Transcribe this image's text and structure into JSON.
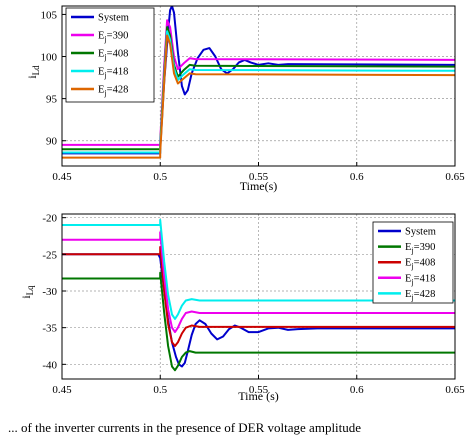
{
  "chart_data": [
    {
      "type": "line",
      "title": "",
      "xlabel": "Time(s)",
      "ylabel": "i_Ld",
      "xlim": [
        0.45,
        0.65
      ],
      "ylim": [
        87,
        106
      ],
      "xticks": [
        0.45,
        0.5,
        0.55,
        0.6,
        0.65
      ],
      "xtick_labels": [
        "0.45",
        "0.5",
        "0.55",
        "0.6",
        "0.65"
      ],
      "yticks": [
        90,
        95,
        100,
        105
      ],
      "ytick_labels": [
        "90",
        "95",
        "100",
        "105"
      ],
      "grid": true,
      "legend_position": "top-left",
      "series": [
        {
          "name": "System",
          "legend_main": "System",
          "legend_sub": "",
          "legend_tail": "",
          "color": "#0000cc",
          "points": [
            [
              0.45,
              88.5
            ],
            [
              0.5,
              88.5
            ],
            [
              0.5,
              89
            ],
            [
              0.502,
              97
            ],
            [
              0.504,
              103
            ],
            [
              0.505,
              105.5
            ],
            [
              0.506,
              106
            ],
            [
              0.507,
              105.2
            ],
            [
              0.509,
              100.5
            ],
            [
              0.511,
              96.5
            ],
            [
              0.5125,
              95.5
            ],
            [
              0.514,
              96
            ],
            [
              0.516,
              98
            ],
            [
              0.519,
              99.8
            ],
            [
              0.522,
              100.8
            ],
            [
              0.525,
              101
            ],
            [
              0.528,
              100
            ],
            [
              0.531,
              98.5
            ],
            [
              0.534,
              98
            ],
            [
              0.537,
              98.5
            ],
            [
              0.54,
              99.3
            ],
            [
              0.543,
              99.6
            ],
            [
              0.546,
              99.3
            ],
            [
              0.55,
              99
            ],
            [
              0.555,
              99.2
            ],
            [
              0.56,
              99
            ],
            [
              0.565,
              99.1
            ],
            [
              0.65,
              99
            ]
          ]
        },
        {
          "name": "E_j=390",
          "legend_main": "E",
          "legend_sub": "j",
          "legend_tail": "=390",
          "color": "#ee00ee",
          "points": [
            [
              0.45,
              89.5
            ],
            [
              0.5,
              89.5
            ],
            [
              0.5,
              90
            ],
            [
              0.502,
              99
            ],
            [
              0.5035,
              104.3
            ],
            [
              0.505,
              103.5
            ],
            [
              0.507,
              100
            ],
            [
              0.509,
              98.5
            ],
            [
              0.512,
              99.2
            ],
            [
              0.515,
              99.8
            ],
            [
              0.518,
              99.7
            ],
            [
              0.65,
              99.6
            ]
          ]
        },
        {
          "name": "E_j=408",
          "legend_main": "E",
          "legend_sub": "j",
          "legend_tail": "=408",
          "color": "#007700",
          "points": [
            [
              0.45,
              89
            ],
            [
              0.5,
              89
            ],
            [
              0.5,
              89.5
            ],
            [
              0.502,
              98
            ],
            [
              0.5035,
              103.5
            ],
            [
              0.505,
              102.5
            ],
            [
              0.507,
              99
            ],
            [
              0.509,
              97.6
            ],
            [
              0.512,
              98.4
            ],
            [
              0.515,
              99
            ],
            [
              0.518,
              98.9
            ],
            [
              0.65,
              98.8
            ]
          ]
        },
        {
          "name": "E_j=418",
          "legend_main": "E",
          "legend_sub": "j",
          "legend_tail": "=418",
          "color": "#00eeee",
          "points": [
            [
              0.45,
              88.6
            ],
            [
              0.5,
              88.6
            ],
            [
              0.5,
              89.2
            ],
            [
              0.502,
              97.5
            ],
            [
              0.5035,
              103
            ],
            [
              0.505,
              102
            ],
            [
              0.507,
              98.6
            ],
            [
              0.509,
              97.2
            ],
            [
              0.512,
              97.9
            ],
            [
              0.515,
              98.5
            ],
            [
              0.518,
              98.4
            ],
            [
              0.65,
              98.3
            ]
          ]
        },
        {
          "name": "E_j=428",
          "legend_main": "E",
          "legend_sub": "j",
          "legend_tail": "=428",
          "color": "#dd6600",
          "points": [
            [
              0.45,
              88
            ],
            [
              0.5,
              88
            ],
            [
              0.5,
              88.6
            ],
            [
              0.502,
              97
            ],
            [
              0.5035,
              102.5
            ],
            [
              0.505,
              101.5
            ],
            [
              0.507,
              98
            ],
            [
              0.509,
              96.8
            ],
            [
              0.512,
              97.4
            ],
            [
              0.515,
              98
            ],
            [
              0.518,
              97.9
            ],
            [
              0.65,
              97.8
            ]
          ]
        }
      ]
    },
    {
      "type": "line",
      "title": "",
      "xlabel": "Time (s)",
      "ylabel": "i_Lq",
      "xlim": [
        0.45,
        0.65
      ],
      "ylim": [
        -42,
        -19.5
      ],
      "xticks": [
        0.45,
        0.5,
        0.55,
        0.6,
        0.65
      ],
      "xtick_labels": [
        "0.45",
        "0.5",
        "0.55",
        "0.6",
        "0.65"
      ],
      "yticks": [
        -40,
        -35,
        -30,
        -25,
        -20
      ],
      "ytick_labels": [
        "-40",
        "-35",
        "-30",
        "-25",
        "-20"
      ],
      "grid": true,
      "legend_position": "top-right",
      "series": [
        {
          "name": "System",
          "legend_main": "System",
          "legend_sub": "",
          "legend_tail": "",
          "color": "#0000cc",
          "points": [
            [
              0.45,
              -25
            ],
            [
              0.499,
              -25
            ],
            [
              0.5,
              -25.5
            ],
            [
              0.502,
              -30
            ],
            [
              0.504,
              -34
            ],
            [
              0.506,
              -37
            ],
            [
              0.508,
              -39
            ],
            [
              0.5095,
              -40
            ],
            [
              0.511,
              -40.3
            ],
            [
              0.5125,
              -39.8
            ],
            [
              0.514,
              -38.2
            ],
            [
              0.516,
              -36
            ],
            [
              0.518,
              -34.5
            ],
            [
              0.52,
              -34
            ],
            [
              0.523,
              -34.5
            ],
            [
              0.526,
              -35.8
            ],
            [
              0.529,
              -36.6
            ],
            [
              0.532,
              -36.2
            ],
            [
              0.535,
              -35.2
            ],
            [
              0.538,
              -34.7
            ],
            [
              0.541,
              -35
            ],
            [
              0.545,
              -35.6
            ],
            [
              0.55,
              -35.6
            ],
            [
              0.555,
              -35.1
            ],
            [
              0.56,
              -35
            ],
            [
              0.565,
              -35.3
            ],
            [
              0.57,
              -35.2
            ],
            [
              0.58,
              -35.1
            ],
            [
              0.65,
              -35.1
            ]
          ]
        },
        {
          "name": "E_j=390",
          "legend_main": "E",
          "legend_sub": "j",
          "legend_tail": "=390",
          "color": "#007700",
          "points": [
            [
              0.45,
              -28.3
            ],
            [
              0.5,
              -28.3
            ],
            [
              0.5,
              -27.5
            ],
            [
              0.502,
              -33
            ],
            [
              0.504,
              -37.5
            ],
            [
              0.506,
              -40.3
            ],
            [
              0.5075,
              -40.8
            ],
            [
              0.509,
              -40.2
            ],
            [
              0.511,
              -39
            ],
            [
              0.513,
              -38.4
            ],
            [
              0.515,
              -38.2
            ],
            [
              0.518,
              -38.4
            ],
            [
              0.65,
              -38.4
            ]
          ]
        },
        {
          "name": "E_j=408",
          "legend_main": "E",
          "legend_sub": "j",
          "legend_tail": "=408",
          "color": "#cc0000",
          "points": [
            [
              0.45,
              -25
            ],
            [
              0.5,
              -25
            ],
            [
              0.5,
              -24
            ],
            [
              0.502,
              -30
            ],
            [
              0.504,
              -34.5
            ],
            [
              0.506,
              -37
            ],
            [
              0.5075,
              -37.5
            ],
            [
              0.509,
              -37
            ],
            [
              0.511,
              -35.8
            ],
            [
              0.513,
              -35
            ],
            [
              0.516,
              -34.7
            ],
            [
              0.52,
              -34.9
            ],
            [
              0.65,
              -34.9
            ]
          ]
        },
        {
          "name": "E_j=418",
          "legend_main": "E",
          "legend_sub": "j",
          "legend_tail": "=418",
          "color": "#ee00ee",
          "points": [
            [
              0.45,
              -23
            ],
            [
              0.5,
              -23
            ],
            [
              0.5,
              -22
            ],
            [
              0.502,
              -28
            ],
            [
              0.504,
              -32.5
            ],
            [
              0.506,
              -35
            ],
            [
              0.5075,
              -35.6
            ],
            [
              0.509,
              -35
            ],
            [
              0.511,
              -33.8
            ],
            [
              0.513,
              -33
            ],
            [
              0.516,
              -32.8
            ],
            [
              0.52,
              -33
            ],
            [
              0.65,
              -33
            ]
          ]
        },
        {
          "name": "E_j=428",
          "legend_main": "E",
          "legend_sub": "j",
          "legend_tail": "=428",
          "color": "#00eeee",
          "points": [
            [
              0.45,
              -21
            ],
            [
              0.5,
              -21
            ],
            [
              0.5,
              -20.3
            ],
            [
              0.502,
              -26
            ],
            [
              0.504,
              -30.5
            ],
            [
              0.506,
              -33.2
            ],
            [
              0.5075,
              -33.8
            ],
            [
              0.509,
              -33.2
            ],
            [
              0.511,
              -32
            ],
            [
              0.513,
              -31.3
            ],
            [
              0.516,
              -31.1
            ],
            [
              0.52,
              -31.3
            ],
            [
              0.65,
              -31.3
            ]
          ]
        }
      ]
    }
  ],
  "caption": "... of the inverter currents in the presence of DER voltage amplitude"
}
